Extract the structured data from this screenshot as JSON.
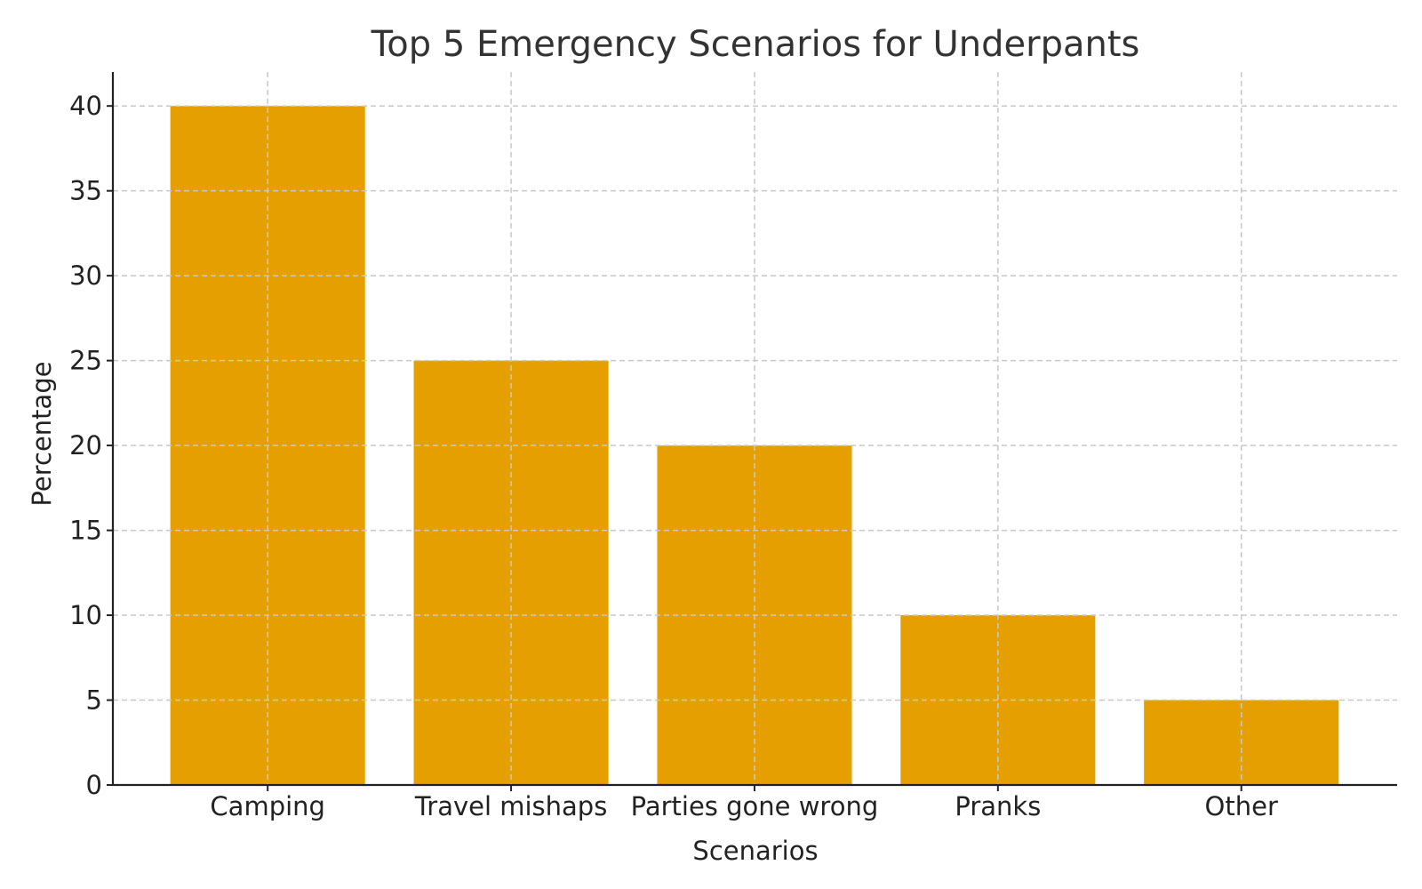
{
  "chart_data": {
    "type": "bar",
    "title": "Top 5 Emergency Scenarios for Underpants",
    "xlabel": "Scenarios",
    "ylabel": "Percentage",
    "categories": [
      "Camping",
      "Travel mishaps",
      "Parties gone wrong",
      "Pranks",
      "Other"
    ],
    "values": [
      40,
      25,
      20,
      10,
      5
    ],
    "ylim": [
      0,
      42
    ],
    "yticks": [
      0,
      5,
      10,
      15,
      20,
      25,
      30,
      35,
      40
    ],
    "ytick_labels": [
      "0",
      "5",
      "10",
      "15",
      "20",
      "25",
      "30",
      "35",
      "40"
    ],
    "grid": true,
    "bar_color": "#E5A000",
    "text_color": "#333333"
  }
}
